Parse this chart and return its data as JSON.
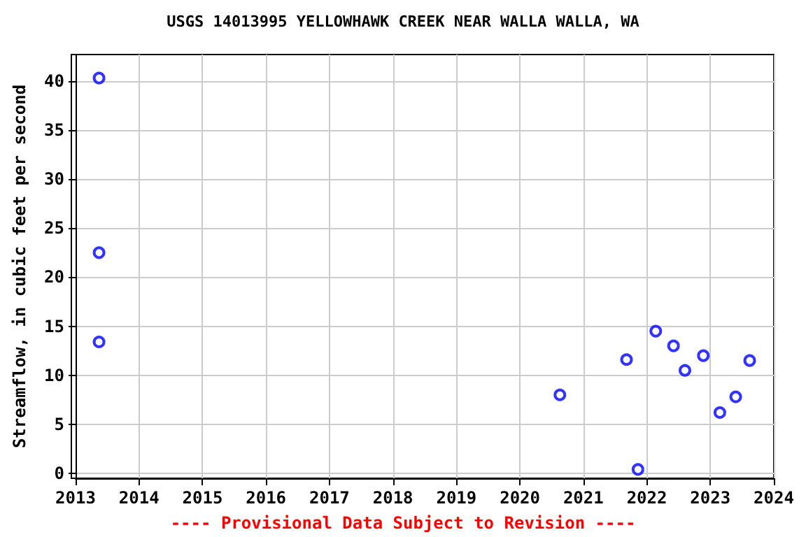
{
  "chart_data": {
    "type": "scatter",
    "title": "USGS 14013995 YELLOWHAWK CREEK NEAR WALLA WALLA, WA",
    "ylabel": "Streamflow, in cubic feet per second",
    "annotations": [
      "---- Provisional Data Subject to Revision ----"
    ],
    "x": [
      2013.37,
      2013.37,
      2013.37,
      2020.63,
      2021.68,
      2021.86,
      2022.14,
      2022.42,
      2022.6,
      2022.89,
      2023.15,
      2023.4,
      2023.62
    ],
    "values": [
      40.3,
      22.5,
      13.4,
      8.0,
      11.6,
      0.4,
      14.5,
      13.0,
      10.5,
      12.0,
      6.2,
      7.8,
      11.5
    ],
    "color": "#0000ff",
    "marker": "circle",
    "grid": true,
    "xlim": [
      2013,
      2024
    ],
    "xticks": [
      2013,
      2014,
      2015,
      2016,
      2017,
      2018,
      2019,
      2020,
      2021,
      2022,
      2023,
      2024
    ],
    "ylim": [
      -0.5,
      42.7
    ],
    "yticks": [
      0,
      5,
      10,
      15,
      20,
      25,
      30,
      35,
      40
    ]
  }
}
